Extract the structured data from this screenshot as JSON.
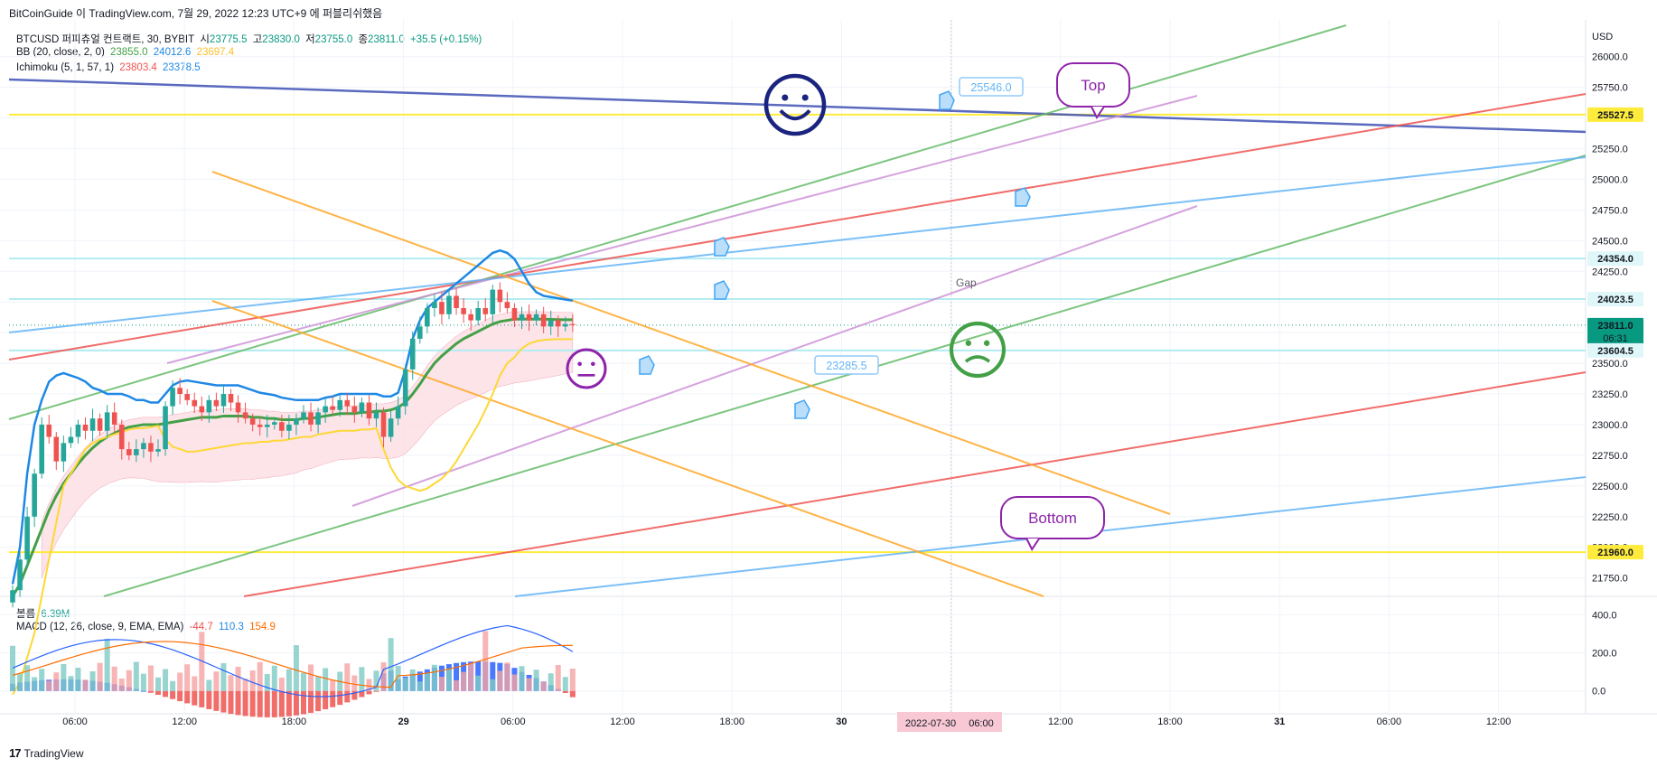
{
  "header": {
    "attribution": "BitCoinGuide 이 TradingView.com, 7월 29, 2022 12:23 UTC+9 에 퍼블리쉬했음"
  },
  "legend": {
    "symbol": "BTCUSD 퍼피츄얼 컨트랙트, 30, BYBIT",
    "open_label": "시",
    "open": "23775.5",
    "high_label": "고",
    "high": "23830.0",
    "low_label": "저",
    "low": "23755.0",
    "close_label": "종",
    "close": "23811.0",
    "change": "+35.5 (+0.15%)",
    "bb_label": "BB (20, close, 2, 0)",
    "bb_basis": "23855.0",
    "bb_upper": "24012.6",
    "bb_lower": "23697.4",
    "ichimoku_label": "Ichimoku (5, 1, 57, 1)",
    "ichi_a": "23803.4",
    "ichi_b": "23378.5",
    "volume_label": "볼륨",
    "volume": "6.39M",
    "macd_label": "MACD (12, 26, close, 9, EMA, EMA)",
    "macd_hist": "-44.7",
    "macd_line": "110.3",
    "macd_signal": "154.9"
  },
  "footer": {
    "brand": "TradingView"
  },
  "colors": {
    "up": "#26a69a",
    "down": "#ef5350",
    "bb_basis": "#43a047",
    "bb_upper": "#1e88e5",
    "bb_lower": "#fdd835",
    "cloud": "#f8bbd0",
    "orange": "#ffa726",
    "navy": "#1a237e",
    "purple": "#8e24aa",
    "green": "#43a047"
  },
  "chart_data": {
    "type": "candlestick",
    "price_axis_unit": "USD",
    "price_ticks": [
      26000,
      25750,
      25500,
      25250,
      25000,
      24750,
      24500,
      24250,
      24000,
      23750,
      23500,
      23250,
      23000,
      22750,
      22500,
      22250,
      22000,
      21750
    ],
    "price_tick_labels": [
      "26000.0",
      "25750.0",
      "25500.0",
      "25250.0",
      "25000.0",
      "24750.0",
      "24500.0",
      "24250.0",
      "24000.0",
      "23750.0",
      "23500.0",
      "23250.0",
      "23000.0",
      "22750.0",
      "22500.0",
      "22250.0",
      "22000.0",
      "21750.0"
    ],
    "ylim": [
      21600,
      26300
    ],
    "macd_ticks": [
      400,
      200,
      0
    ],
    "macd_tick_labels": [
      "400.0",
      "200.0",
      "0.0"
    ],
    "macd_ylim": [
      -120,
      450
    ],
    "time_ticks": [
      "06:00",
      "12:00",
      "18:00",
      "29",
      "06:00",
      "12:00",
      "18:00",
      "30",
      "06:00",
      "12:00",
      "18:00",
      "31",
      "06:00",
      "12:00"
    ],
    "crosshair_time": "2022-07-30",
    "crosshair_time_hour": "06:00",
    "price_labels": [
      {
        "value": 25527.5,
        "text": "25527.5",
        "bg": "#ffeb3b",
        "fg": "#131722"
      },
      {
        "value": 24354.0,
        "text": "24354.0",
        "bg": "#e0f7fa",
        "fg": "#131722"
      },
      {
        "value": 24023.5,
        "text": "24023.5",
        "bg": "#e0f7fa",
        "fg": "#131722"
      },
      {
        "value": 23811.0,
        "text": "23811.0",
        "sub": "06:31",
        "bg": "#089981",
        "fg": "#ffffff"
      },
      {
        "value": 23604.5,
        "text": "23604.5",
        "bg": "#e0f7fa",
        "fg": "#131722"
      },
      {
        "value": 21960.0,
        "text": "21960.0",
        "bg": "#ffeb3b",
        "fg": "#131722"
      }
    ],
    "horizontal_levels": [
      {
        "value": 25527.5,
        "color": "#ffeb3b"
      },
      {
        "value": 24354.0,
        "color": "#b2ebf2"
      },
      {
        "value": 24023.5,
        "color": "#b2ebf2"
      },
      {
        "value": 23604.5,
        "color": "#b2ebf2"
      },
      {
        "value": 21960.0,
        "color": "#ffeb3b"
      }
    ],
    "annotations": {
      "top": "Top",
      "bottom": "Bottom",
      "gap": "Gap",
      "callout_high": "25546.0",
      "callout_low": "23285.5"
    },
    "candle_closes": [
      21650,
      21900,
      22250,
      22600,
      23000,
      22900,
      22700,
      22850,
      22900,
      23000,
      22950,
      23050,
      22950,
      23100,
      23000,
      22800,
      22750,
      22800,
      22850,
      22780,
      22800,
      23150,
      23300,
      23250,
      23200,
      23150,
      23100,
      23200,
      23150,
      23250,
      23180,
      23100,
      23050,
      23000,
      22980,
      23000,
      23020,
      22950,
      23000,
      23050,
      23100,
      23000,
      23100,
      23150,
      23120,
      23200,
      23150,
      23100,
      23180,
      23050,
      23100,
      22900,
      23050,
      23150,
      23450,
      23700,
      23800,
      23950,
      24000,
      23900,
      24050,
      23950,
      23900,
      23850,
      23950,
      23900,
      24100,
      24000,
      23950,
      23850,
      23900,
      23850,
      23900,
      23800,
      23850,
      23800,
      23820,
      23811
    ],
    "bb_upper": [
      21700,
      22000,
      22600,
      23000,
      23200,
      23350,
      23400,
      23420,
      23400,
      23380,
      23350,
      23300,
      23280,
      23250,
      23250,
      23250,
      23230,
      23200,
      23200,
      23180,
      23180,
      23250,
      23320,
      23350,
      23360,
      23350,
      23340,
      23330,
      23320,
      23320,
      23320,
      23320,
      23300,
      23280,
      23260,
      23250,
      23240,
      23220,
      23210,
      23200,
      23200,
      23200,
      23200,
      23220,
      23230,
      23250,
      23250,
      23250,
      23250,
      23250,
      23250,
      23230,
      23230,
      23260,
      23450,
      23700,
      23850,
      23950,
      24000,
      24050,
      24100,
      24150,
      24200,
      24250,
      24300,
      24350,
      24400,
      24420,
      24400,
      24350,
      24250,
      24150,
      24080,
      24050,
      24040,
      24030,
      24020,
      24012
    ],
    "bb_basis": [
      21600,
      21700,
      21850,
      22000,
      22150,
      22300,
      22420,
      22520,
      22600,
      22680,
      22750,
      22810,
      22860,
      22900,
      22930,
      22960,
      22980,
      22990,
      23000,
      23000,
      23000,
      23010,
      23020,
      23030,
      23040,
      23050,
      23060,
      23060,
      23060,
      23070,
      23070,
      23070,
      23070,
      23060,
      23060,
      23050,
      23050,
      23040,
      23040,
      23040,
      23050,
      23050,
      23060,
      23070,
      23080,
      23090,
      23090,
      23090,
      23100,
      23100,
      23110,
      23110,
      23120,
      23140,
      23180,
      23250,
      23330,
      23420,
      23500,
      23560,
      23610,
      23660,
      23700,
      23730,
      23760,
      23790,
      23820,
      23840,
      23850,
      23860,
      23860,
      23860,
      23860,
      23860,
      23858,
      23856,
      23855,
      23855
    ],
    "bb_lower": [
      20800,
      20900,
      21100,
      21300,
      21600,
      21900,
      22200,
      22500,
      22600,
      22700,
      22800,
      22850,
      22880,
      22900,
      22920,
      22940,
      22960,
      22970,
      22970,
      22980,
      22990,
      22880,
      22820,
      22800,
      22780,
      22780,
      22790,
      22800,
      22810,
      22820,
      22830,
      22840,
      22850,
      22850,
      22860,
      22860,
      22870,
      22870,
      22880,
      22890,
      22900,
      22900,
      22920,
      22930,
      22940,
      22950,
      22950,
      22950,
      22960,
      22960,
      22970,
      22800,
      22650,
      22550,
      22500,
      22480,
      22460,
      22480,
      22520,
      22560,
      22620,
      22700,
      22800,
      22900,
      23000,
      23120,
      23250,
      23400,
      23500,
      23550,
      23620,
      23660,
      23680,
      23690,
      23695,
      23697,
      23697,
      23697
    ]
  }
}
